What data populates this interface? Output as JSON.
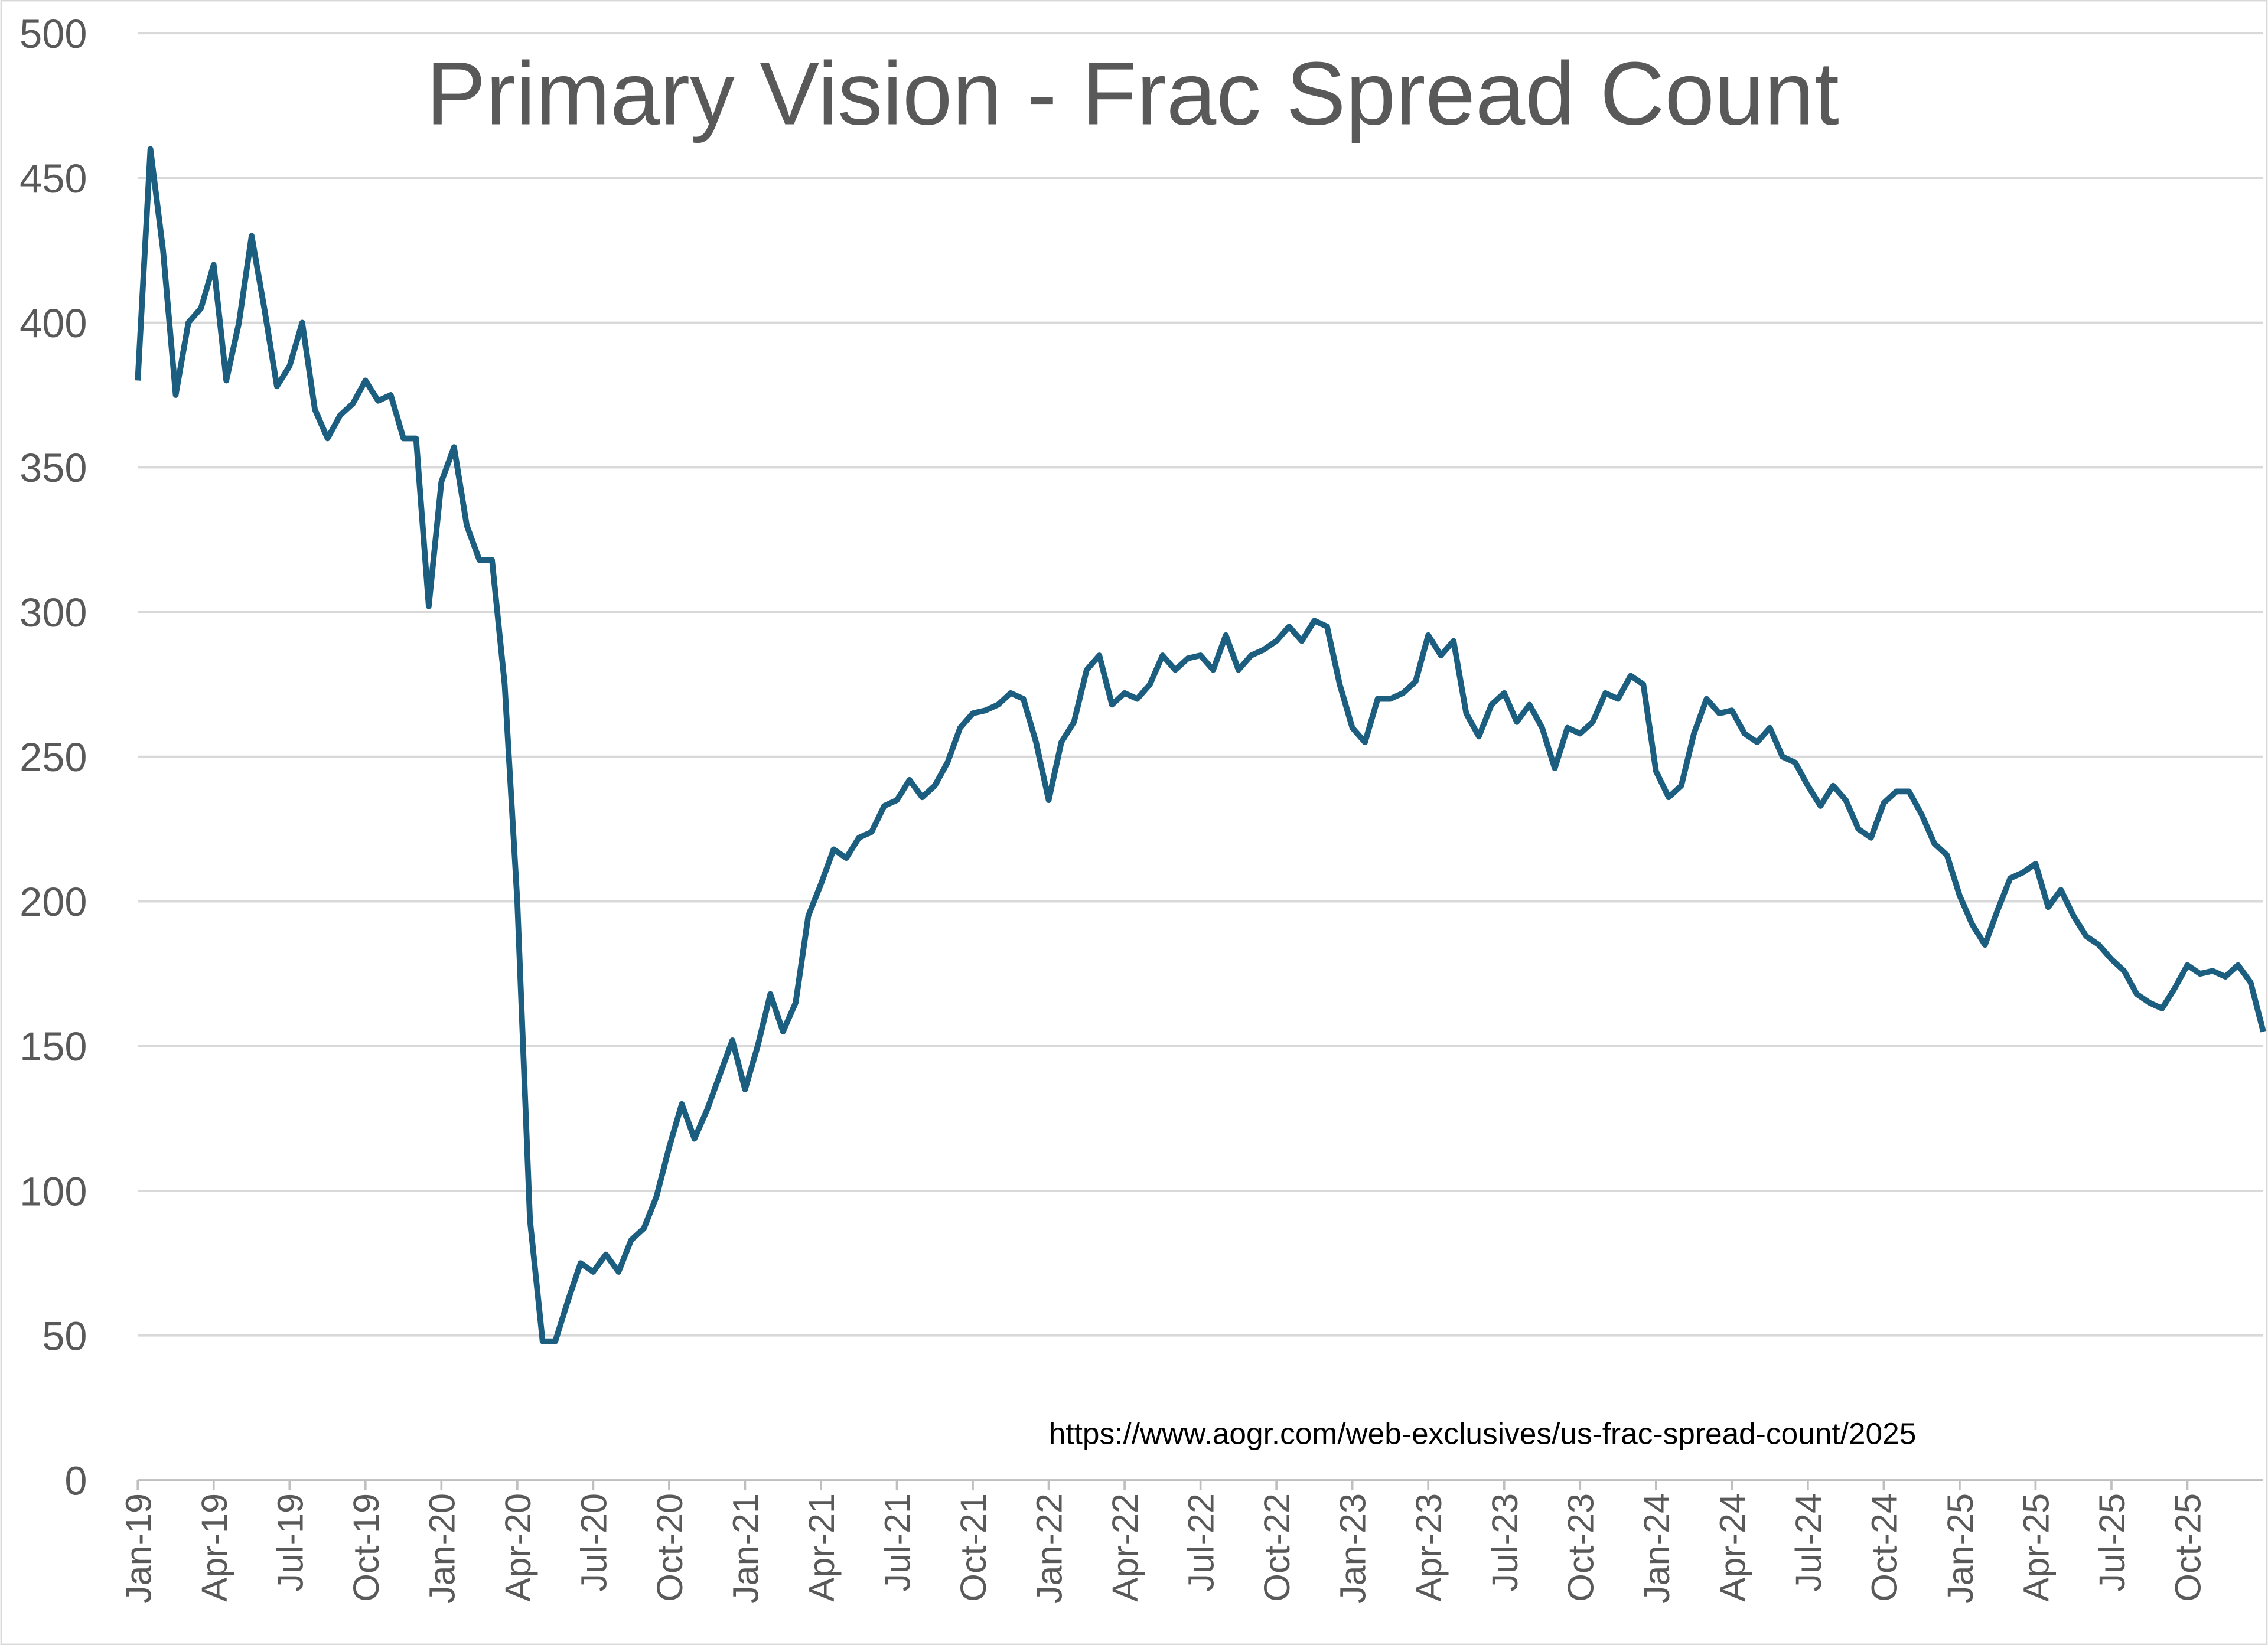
{
  "chart_data": {
    "type": "line",
    "title": "Primary Vision - Frac Spread Count",
    "annotation": "https://www.aogr.com/web-exclusives/us-frac-spread-count/2025",
    "categories": [
      "Jan-19",
      null,
      null,
      null,
      null,
      null,
      "Apr-19",
      null,
      null,
      null,
      null,
      null,
      "Jul-19",
      null,
      null,
      null,
      null,
      null,
      "Oct-19",
      null,
      null,
      null,
      null,
      null,
      "Jan-20",
      null,
      null,
      null,
      null,
      null,
      "Apr-20",
      null,
      null,
      null,
      null,
      null,
      "Jul-20",
      null,
      null,
      null,
      null,
      null,
      "Oct-20",
      null,
      null,
      null,
      null,
      null,
      "Jan-21",
      null,
      null,
      null,
      null,
      null,
      "Apr-21",
      null,
      null,
      null,
      null,
      null,
      "Jul-21",
      null,
      null,
      null,
      null,
      null,
      "Oct-21",
      null,
      null,
      null,
      null,
      null,
      "Jan-22",
      null,
      null,
      null,
      null,
      null,
      "Apr-22",
      null,
      null,
      null,
      null,
      null,
      "Jul-22",
      null,
      null,
      null,
      null,
      null,
      "Oct-22",
      null,
      null,
      null,
      null,
      null,
      "Jan-23",
      null,
      null,
      null,
      null,
      null,
      "Apr-23",
      null,
      null,
      null,
      null,
      null,
      "Jul-23",
      null,
      null,
      null,
      null,
      null,
      "Oct-23",
      null,
      null,
      null,
      null,
      null,
      "Jan-24",
      null,
      null,
      null,
      null,
      null,
      "Apr-24",
      null,
      null,
      null,
      null,
      null,
      "Jul-24",
      null,
      null,
      null,
      null,
      null,
      "Oct-24",
      null,
      null,
      null,
      null,
      null,
      "Jan-25",
      null,
      null,
      null,
      null,
      null,
      "Apr-25",
      null,
      null,
      null,
      null,
      null,
      "Jul-25",
      null,
      null,
      null,
      null,
      null,
      "Oct-25",
      null,
      null,
      null,
      null,
      null,
      null
    ],
    "series": [
      {
        "name": "Frac Spread Count",
        "color": "#1b5e80",
        "values": [
          380,
          460,
          425,
          375,
          400,
          405,
          420,
          380,
          400,
          430,
          405,
          378,
          385,
          400,
          370,
          360,
          368,
          372,
          380,
          373,
          375,
          360,
          360,
          302,
          345,
          357,
          330,
          318,
          318,
          275,
          200,
          90,
          48,
          48,
          62,
          75,
          72,
          78,
          72,
          83,
          87,
          98,
          115,
          130,
          118,
          128,
          140,
          152,
          135,
          150,
          168,
          155,
          165,
          195,
          206,
          218,
          215,
          222,
          224,
          233,
          235,
          242,
          236,
          240,
          248,
          260,
          265,
          266,
          268,
          272,
          270,
          255,
          235,
          255,
          262,
          280,
          285,
          268,
          272,
          270,
          275,
          285,
          280,
          284,
          285,
          280,
          292,
          280,
          285,
          287,
          290,
          295,
          290,
          297,
          295,
          275,
          260,
          255,
          270,
          270,
          272,
          276,
          292,
          285,
          290,
          265,
          257,
          268,
          272,
          262,
          268,
          260,
          246,
          260,
          258,
          262,
          272,
          270,
          278,
          275,
          245,
          236,
          240,
          258,
          270,
          265,
          266,
          258,
          255,
          260,
          250,
          248,
          240,
          233,
          240,
          235,
          225,
          222,
          234,
          238,
          238,
          230,
          220,
          216,
          202,
          192,
          185,
          197,
          208,
          210,
          213,
          198,
          204,
          195,
          188,
          185,
          180,
          176,
          168,
          165,
          163,
          170,
          178,
          175,
          176,
          174,
          178,
          172,
          155
        ]
      }
    ],
    "ylim": [
      0,
      500
    ],
    "yticks": [
      0,
      50,
      100,
      150,
      200,
      250,
      300,
      350,
      400,
      450,
      500
    ],
    "grid": true
  }
}
